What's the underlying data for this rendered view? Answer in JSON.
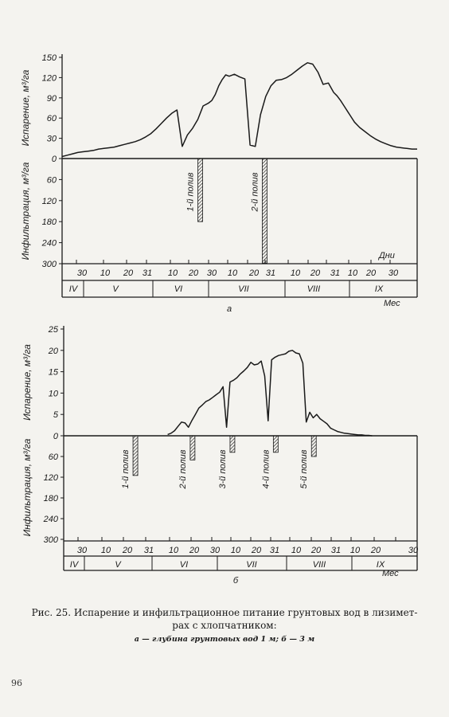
{
  "chart_data": [
    {
      "type": "area",
      "panel_label": "а",
      "evap_axis": {
        "label": "Испарение, м³/га",
        "ticks": [
          0,
          30,
          60,
          90,
          120,
          150
        ],
        "ylim": [
          0,
          150
        ]
      },
      "infil_axis": {
        "label": "Инфильтрация, м³/га",
        "ticks": [
          60,
          120,
          180,
          240,
          300
        ],
        "ylim": [
          0,
          300
        ]
      },
      "x_day_ticks": [
        "30",
        "10",
        "20",
        "31",
        "10",
        "20",
        "30",
        "10",
        "20",
        "31",
        "10",
        "20",
        "31",
        "10",
        "20",
        "30"
      ],
      "x_day_unit": "Дни",
      "months": [
        "IV",
        "V",
        "VI",
        "VII",
        "VIII",
        "IX"
      ],
      "month_unit": "Мес",
      "evaporation": {
        "x": [
          0,
          3,
          6,
          9,
          12,
          15,
          18,
          21,
          24,
          27,
          30,
          33,
          36,
          39,
          42,
          45,
          48,
          51,
          54,
          57,
          60,
          63,
          66,
          69,
          72,
          75,
          78,
          81,
          84,
          86,
          88,
          90,
          92,
          94,
          96,
          99,
          102,
          105,
          108,
          111,
          114,
          117,
          120,
          123,
          126,
          129,
          132,
          135,
          138,
          141,
          144,
          147,
          150,
          153,
          156,
          158,
          160,
          162,
          164,
          166,
          168,
          171,
          174,
          177,
          180,
          183,
          186,
          189,
          192,
          195,
          198,
          201,
          204
        ],
        "y": [
          3,
          5,
          7,
          9,
          10,
          11,
          12,
          14,
          15,
          16,
          17,
          19,
          21,
          23,
          25,
          28,
          32,
          37,
          44,
          52,
          60,
          67,
          72,
          18,
          35,
          45,
          58,
          78,
          82,
          86,
          95,
          108,
          117,
          124,
          122,
          125,
          121,
          118,
          20,
          18,
          65,
          92,
          108,
          116,
          117,
          120,
          125,
          131,
          137,
          142,
          140,
          128,
          110,
          112,
          98,
          93,
          86,
          78,
          70,
          62,
          54,
          46,
          40,
          34,
          29,
          25,
          22,
          19,
          17,
          16,
          15,
          14,
          14
        ]
      },
      "irrigations": [
        {
          "label": "1-й полив",
          "x": 78,
          "value": 180
        },
        {
          "label": "2-й полив",
          "x": 115,
          "value": 298
        }
      ]
    },
    {
      "type": "area",
      "panel_label": "б",
      "evap_axis": {
        "label": "Испарение, м³/га",
        "ticks": [
          0,
          5,
          10,
          15,
          20,
          25
        ],
        "ylim": [
          0,
          25
        ]
      },
      "infil_axis": {
        "label": "Инфильтрация, м³/га",
        "ticks": [
          60,
          120,
          180,
          240,
          300
        ],
        "ylim": [
          0,
          300
        ]
      },
      "x_day_ticks": [
        "30",
        "10",
        "20",
        "31",
        "10",
        "20",
        "30",
        "10",
        "20",
        "31",
        "10",
        "20",
        "31",
        "10",
        "20",
        "30"
      ],
      "months": [
        "IV",
        "V",
        "VI",
        "VII",
        "VIII",
        "IX"
      ],
      "month_unit": "Мес",
      "evaporation": {
        "x": [
          60,
          62,
          64,
          66,
          68,
          70,
          72,
          74,
          76,
          78,
          80,
          82,
          84,
          86,
          88,
          90,
          92,
          94,
          96,
          98,
          100,
          102,
          104,
          106,
          108,
          110,
          112,
          114,
          116,
          118,
          120,
          122,
          124,
          126,
          128,
          130,
          132,
          134,
          136,
          138,
          140,
          142,
          144,
          146,
          148,
          150,
          152,
          154,
          156,
          158,
          160,
          162,
          164,
          166,
          168,
          170,
          172,
          174,
          176,
          178
        ],
        "y": [
          0.3,
          0.6,
          1.2,
          2.2,
          3.2,
          3.0,
          2.0,
          3.6,
          5.0,
          6.5,
          7.2,
          8.0,
          8.4,
          9.0,
          9.6,
          10.2,
          11.5,
          2.0,
          12.6,
          13.0,
          13.6,
          14.5,
          15.2,
          16.0,
          17.2,
          16.6,
          16.8,
          17.5,
          14.0,
          3.5,
          17.8,
          18.4,
          18.8,
          19.0,
          19.2,
          19.8,
          20.0,
          19.4,
          19.2,
          17.0,
          3.2,
          5.5,
          4.2,
          5.0,
          4.0,
          3.4,
          2.8,
          1.8,
          1.4,
          1.0,
          0.8,
          0.6,
          0.5,
          0.4,
          0.3,
          0.2,
          0.2,
          0.1,
          0.1,
          0.0
        ]
      },
      "irrigations": [
        {
          "label": "1-й полив",
          "x": 40,
          "value": 115
        },
        {
          "label": "2-й полив",
          "x": 73,
          "value": 70
        },
        {
          "label": "3-й полив",
          "x": 96,
          "value": 48
        },
        {
          "label": "4-й полив",
          "x": 121,
          "value": 48
        },
        {
          "label": "5-й полив",
          "x": 143,
          "value": 60
        }
      ]
    }
  ],
  "caption": {
    "line1": "Рис. 25. Испарение и инфильтрационное питание грунтовых вод в лизимет-",
    "line2": "рах с хлопчатником:",
    "line3": "а — глубина грунтовых вод 1 м; б — 3 м"
  },
  "page_number": "96"
}
